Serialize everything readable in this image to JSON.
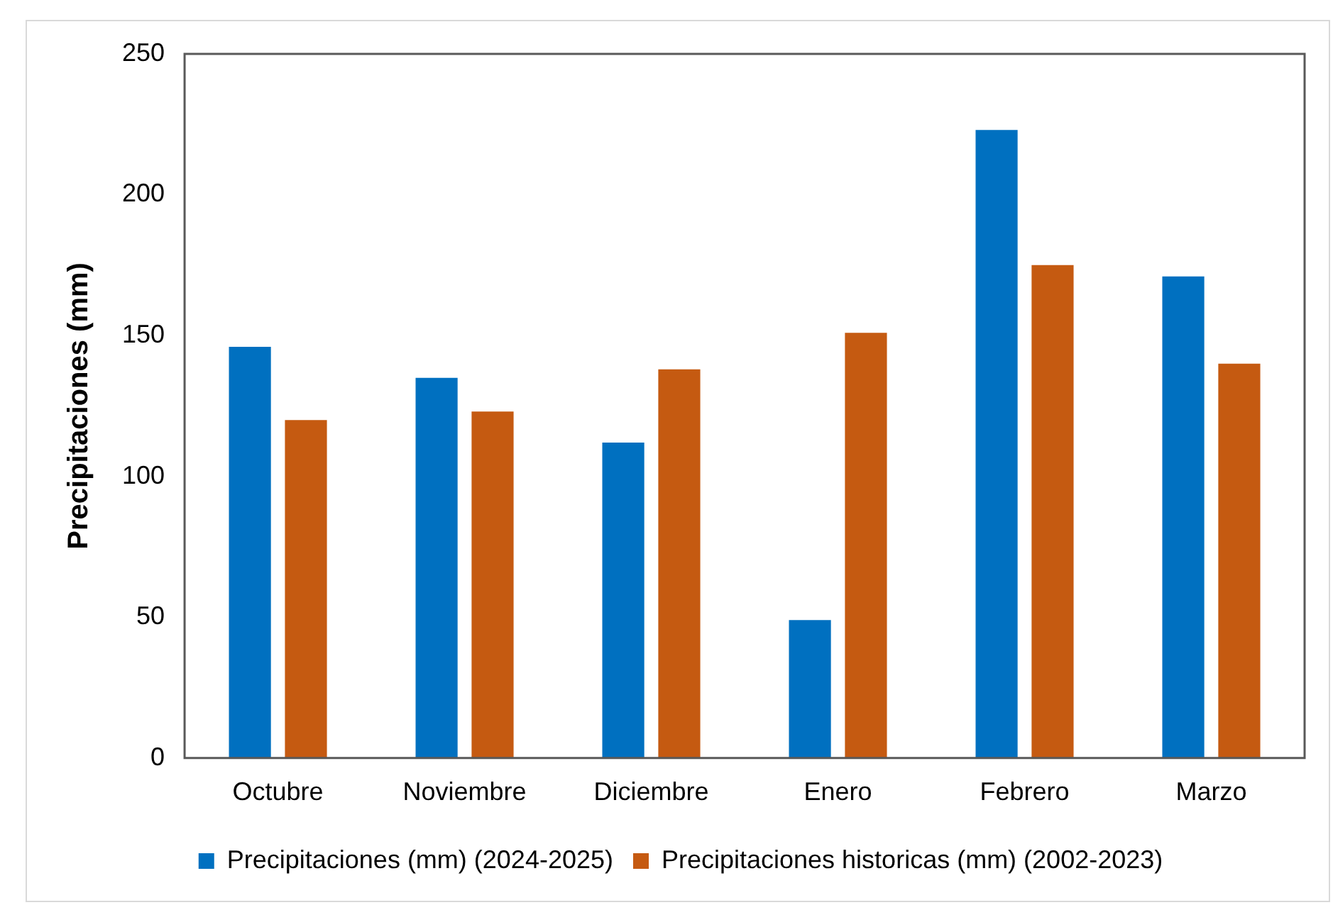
{
  "chart_data": {
    "type": "bar",
    "ylabel": "Precipitaciones (mm)",
    "categories": [
      "Octubre",
      "Noviembre",
      "Diciembre",
      "Enero",
      "Febrero",
      "Marzo"
    ],
    "series": [
      {
        "name": "Precipitaciones (mm) (2024-2025)",
        "color": "#0070c0",
        "values": [
          146,
          135,
          112,
          49,
          223,
          171
        ]
      },
      {
        "name": "Precipitaciones historicas (mm) (2002-2023)",
        "color": "#c55a11",
        "values": [
          120,
          123,
          138,
          151,
          175,
          140
        ]
      }
    ],
    "ylim": [
      0,
      250
    ],
    "yticks": [
      0,
      50,
      100,
      150,
      200,
      250
    ],
    "grid": false,
    "legend": "bottom"
  }
}
